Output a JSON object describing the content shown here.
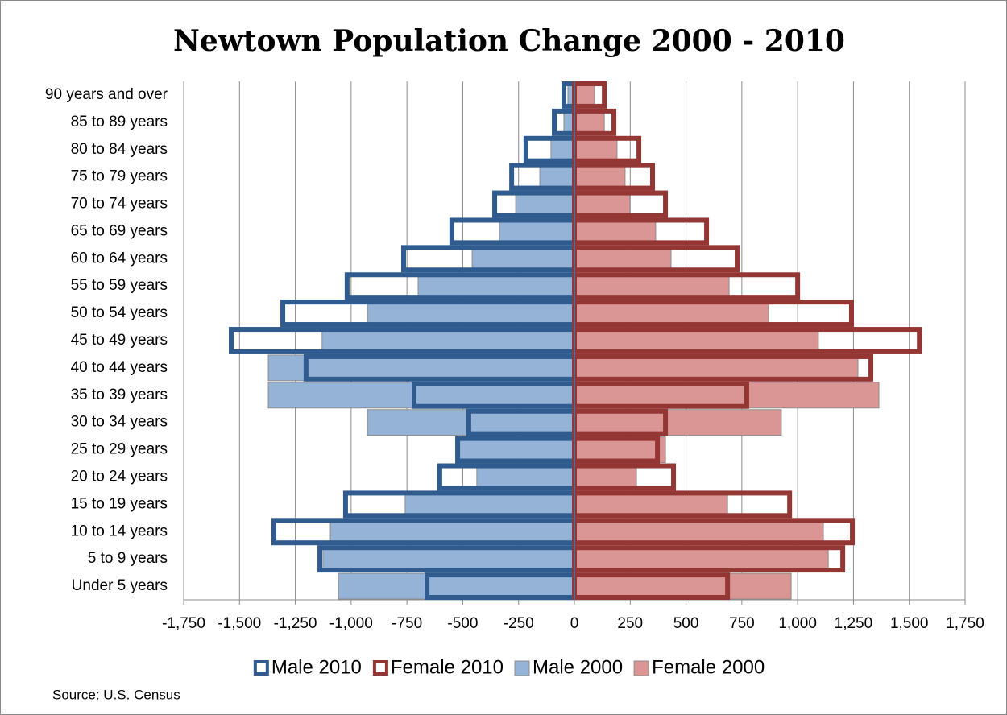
{
  "chart_data": {
    "type": "bar",
    "orientation": "horizontal",
    "title": "Newtown Population Change 2000 - 2010",
    "source": "Source: U.S. Census",
    "categories": [
      "Under 5 years",
      "5 to 9 years",
      "10 to 14 years",
      "15 to 19 years",
      "20 to 24 years",
      "25 to 29 years",
      "30 to 34 years",
      "35 to 39 years",
      "40 to 44 years",
      "45 to 49 years",
      "50 to 54 years",
      "55 to 59 years",
      "60 to 64 years",
      "65 to 69 years",
      "70 to 74 years",
      "75 to 79 years",
      "80 to 84 years",
      "85 to 89 years",
      "90 years and over"
    ],
    "series": [
      {
        "name": "Male 2010",
        "color": "#2f5b8e",
        "style": "outline",
        "values": [
          -660,
          -1140,
          -1346,
          -1025,
          -603,
          -523,
          -473,
          -718,
          -1202,
          -1537,
          -1306,
          -1018,
          -765,
          -549,
          -357,
          -281,
          -217,
          -90,
          -47
        ]
      },
      {
        "name": "Female 2010",
        "color": "#943634",
        "style": "outline",
        "values": [
          686,
          1202,
          1245,
          964,
          444,
          372,
          408,
          772,
          1328,
          1545,
          1241,
          1000,
          729,
          592,
          408,
          350,
          289,
          177,
          134
        ]
      },
      {
        "name": "Male 2000",
        "color": "#95b3d7",
        "style": "fill",
        "values": [
          -1057,
          -1126,
          -1093,
          -758,
          -437,
          -516,
          -927,
          -1371,
          -1371,
          -1130,
          -927,
          -700,
          -458,
          -336,
          -263,
          -155,
          -105,
          -47,
          -29
        ]
      },
      {
        "name": "Female 2000",
        "color": "#d99694",
        "style": "fill",
        "values": [
          971,
          1137,
          1115,
          686,
          278,
          408,
          927,
          1364,
          1270,
          1093,
          870,
          693,
          433,
          364,
          249,
          227,
          191,
          134,
          90
        ]
      }
    ],
    "xlim": [
      -1750,
      1750
    ],
    "xticks": [
      {
        "value": -1750,
        "label": "-1,750"
      },
      {
        "value": -1500,
        "label": "-1,500"
      },
      {
        "value": -1250,
        "label": "-1,250"
      },
      {
        "value": -1000,
        "label": "-1,000"
      },
      -750,
      -500,
      -250,
      0,
      250,
      500,
      750,
      {
        "value": 1000,
        "label": "1,000"
      },
      {
        "value": 1250,
        "label": "1,250"
      },
      {
        "value": 1500,
        "label": "1,500"
      },
      {
        "value": 1750,
        "label": "1,750"
      }
    ],
    "grid": true,
    "legend": "bottom"
  }
}
